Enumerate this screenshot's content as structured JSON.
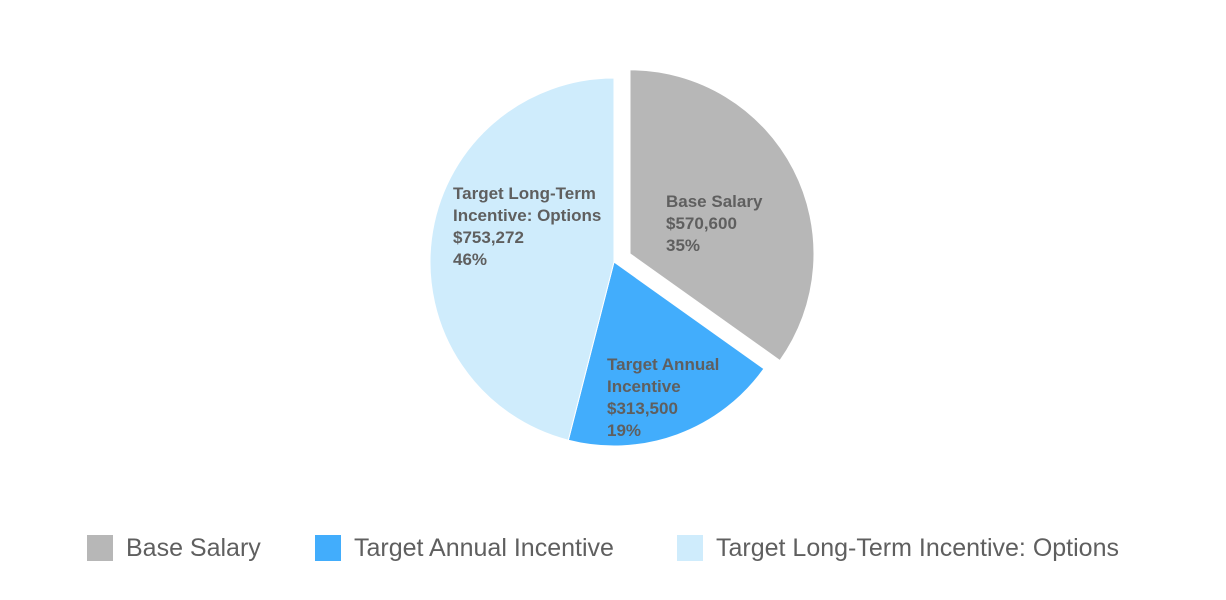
{
  "chart_data": {
    "type": "pie",
    "title": "",
    "slices": [
      {
        "name": "Base Salary",
        "value": 570600,
        "value_label": "$570,600",
        "percent_label": "35%",
        "label_lines": [
          "Base Salary"
        ],
        "color": "#b7b7b7",
        "exploded": true
      },
      {
        "name": "Target Annual Incentive",
        "value": 313500,
        "value_label": "$313,500",
        "percent_label": "19%",
        "label_lines": [
          "Target Annual",
          "Incentive"
        ],
        "color": "#42adfc",
        "exploded": false
      },
      {
        "name": "Target Long-Term Incentive: Options",
        "value": 753272,
        "value_label": "$753,272",
        "percent_label": "46%",
        "label_lines": [
          "Target Long-Term",
          "Incentive: Options"
        ],
        "color": "#cfecfc",
        "exploded": false
      }
    ],
    "start_angle_deg": 0,
    "direction": "clockwise",
    "legend_position": "bottom"
  }
}
